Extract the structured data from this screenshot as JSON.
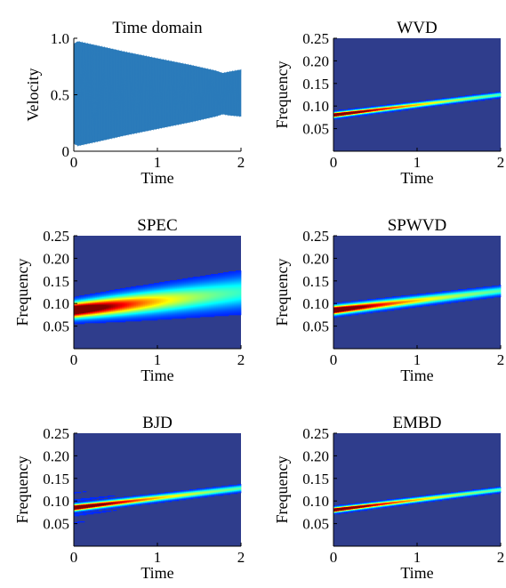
{
  "chart_data": [
    {
      "type": "line",
      "title": "Time domain",
      "xlabel": "Time",
      "ylabel": "Velocity",
      "xlim": [
        0,
        2
      ],
      "ylim": [
        0,
        1
      ],
      "xticks": [
        "0",
        "1",
        "2"
      ],
      "yticks": [
        "0",
        "0.5",
        "1.0"
      ],
      "series": [
        {
          "color": "#2b7bba",
          "description": "dense oscillating signal; envelope shown",
          "upper_envelope": {
            "x": [
              0,
              0.05,
              0.3,
              0.6,
              1.0,
              1.4,
              1.7,
              1.78,
              1.85,
              2.0
            ],
            "y": [
              0.95,
              0.97,
              0.93,
              0.88,
              0.82,
              0.76,
              0.71,
              0.69,
              0.7,
              0.72
            ]
          },
          "lower_envelope": {
            "x": [
              0,
              0.05,
              0.3,
              0.6,
              1.0,
              1.4,
              1.7,
              1.78,
              1.85,
              2.0
            ],
            "y": [
              0.07,
              0.05,
              0.09,
              0.14,
              0.2,
              0.26,
              0.31,
              0.33,
              0.32,
              0.31
            ]
          }
        }
      ]
    },
    {
      "type": "heatmap",
      "title": "WVD",
      "xlabel": "Time",
      "ylabel": "Frequency",
      "xlim": [
        0,
        2
      ],
      "ylim": [
        0,
        0.25
      ],
      "xticks": [
        "0",
        "1",
        "2"
      ],
      "yticks": [
        "0.05",
        "0.10",
        "0.15",
        "0.20",
        "0.25"
      ],
      "ridge": {
        "x": [
          0,
          2
        ],
        "frequency": [
          0.08,
          0.125
        ]
      },
      "style": "sharp"
    },
    {
      "type": "heatmap",
      "title": "SPEC",
      "xlabel": "Time",
      "ylabel": "Frequency",
      "xlim": [
        0,
        2
      ],
      "ylim": [
        0,
        0.25
      ],
      "xticks": [
        "0",
        "1",
        "2"
      ],
      "yticks": [
        "0.05",
        "0.10",
        "0.15",
        "0.20",
        "0.25"
      ],
      "ridge": {
        "x": [
          0,
          2
        ],
        "frequency": [
          0.085,
          0.125
        ]
      },
      "style": "blurred"
    },
    {
      "type": "heatmap",
      "title": "SPWVD",
      "xlabel": "Time",
      "ylabel": "Frequency",
      "xlim": [
        0,
        2
      ],
      "ylim": [
        0,
        0.25
      ],
      "xticks": [
        "0",
        "1",
        "2"
      ],
      "yticks": [
        "0.05",
        "0.10",
        "0.15",
        "0.20",
        "0.25"
      ],
      "ridge": {
        "x": [
          0,
          2
        ],
        "frequency": [
          0.085,
          0.128
        ]
      },
      "style": "medium"
    },
    {
      "type": "heatmap",
      "title": "BJD",
      "xlabel": "Time",
      "ylabel": "Frequency",
      "xlim": [
        0,
        2
      ],
      "ylim": [
        0,
        0.25
      ],
      "xticks": [
        "0",
        "1",
        "2"
      ],
      "yticks": [
        "0.05",
        "0.10",
        "0.15",
        "0.20",
        "0.25"
      ],
      "ridge": {
        "x": [
          0,
          2
        ],
        "frequency": [
          0.085,
          0.128
        ]
      },
      "style": "interference"
    },
    {
      "type": "heatmap",
      "title": "EMBD",
      "xlabel": "Time",
      "ylabel": "Frequency",
      "xlim": [
        0,
        2
      ],
      "ylim": [
        0,
        0.25
      ],
      "xticks": [
        "0",
        "1",
        "2"
      ],
      "yticks": [
        "0.05",
        "0.10",
        "0.15",
        "0.20",
        "0.25"
      ],
      "ridge": {
        "x": [
          0,
          2
        ],
        "frequency": [
          0.08,
          0.125
        ]
      },
      "style": "sharp"
    }
  ],
  "colors": {
    "background": "#2f3d8c",
    "signal": "#2b7bba"
  }
}
